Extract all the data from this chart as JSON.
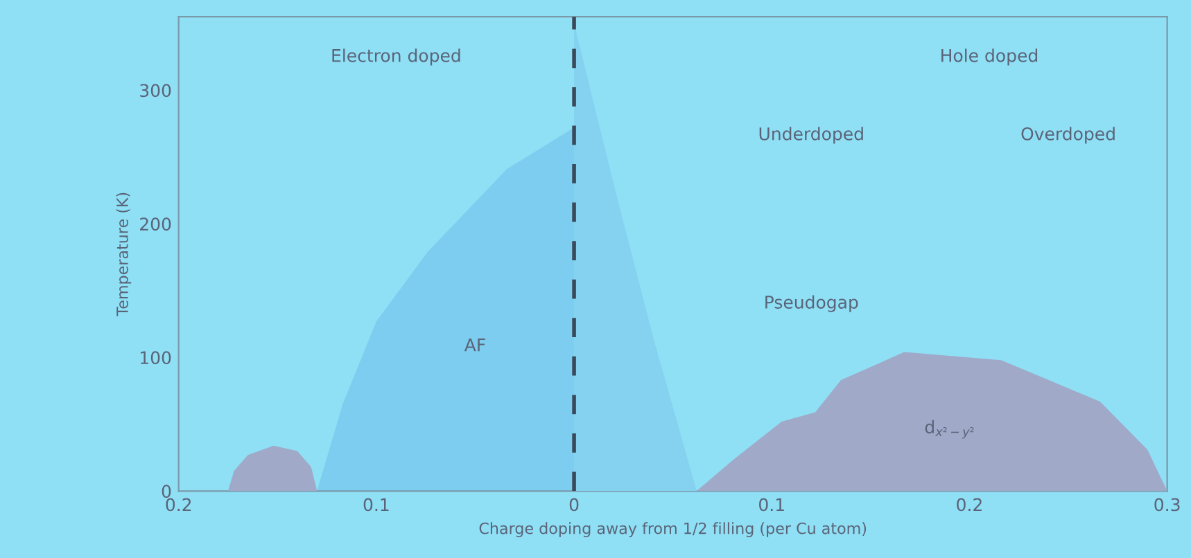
{
  "chart_data": {
    "type": "area",
    "xlabel": "Charge doping away from 1/2 filling (per Cu atom)",
    "ylabel": "Temperature (K)",
    "xlim": [
      -0.2,
      0.3
    ],
    "ylim": [
      0,
      355
    ],
    "xticks": [
      {
        "value": -0.2,
        "label": "0.2"
      },
      {
        "value": -0.1,
        "label": "0.1"
      },
      0,
      0.1,
      0.2,
      {
        "value": 0.3,
        "label": "0.3"
      }
    ],
    "yticks": [
      0,
      100,
      200,
      300
    ],
    "grid": false,
    "legend": false,
    "series": [
      {
        "color": "#7ccdef",
        "x": [
          -0.13,
          -0.117,
          -0.1,
          -0.074,
          -0.034,
          0
        ],
        "values": [
          0,
          65,
          127,
          179,
          241,
          272
        ]
      },
      {
        "color": "#84d2f0",
        "x": [
          0,
          0.02,
          0.04,
          0.062
        ],
        "values": [
          350,
          230,
          115,
          0
        ]
      },
      {
        "color": "#a0a9c8",
        "x": [
          -0.175,
          -0.172,
          -0.165,
          -0.152,
          -0.14,
          -0.133,
          -0.13
        ],
        "values": [
          0,
          15,
          27,
          34,
          30,
          18,
          0
        ]
      },
      {
        "color": "#a0a9c8",
        "x": [
          0.062,
          0.081,
          0.105,
          0.122,
          0.135,
          0.167,
          0.216,
          0.266,
          0.29,
          0.3
        ],
        "values": [
          0,
          24,
          52,
          59,
          83,
          104,
          98,
          67,
          31,
          0
        ]
      }
    ],
    "ref_lines": [
      {
        "axis": "x",
        "value": 0,
        "color": "#3a4a5a",
        "line_style": "dashed"
      }
    ],
    "annotations": [
      "Electron doped",
      "Hole doped",
      "Underdoped",
      "Overdoped",
      "Pseudogap",
      "AF",
      "d$_{x²−y²}$"
    ]
  }
}
